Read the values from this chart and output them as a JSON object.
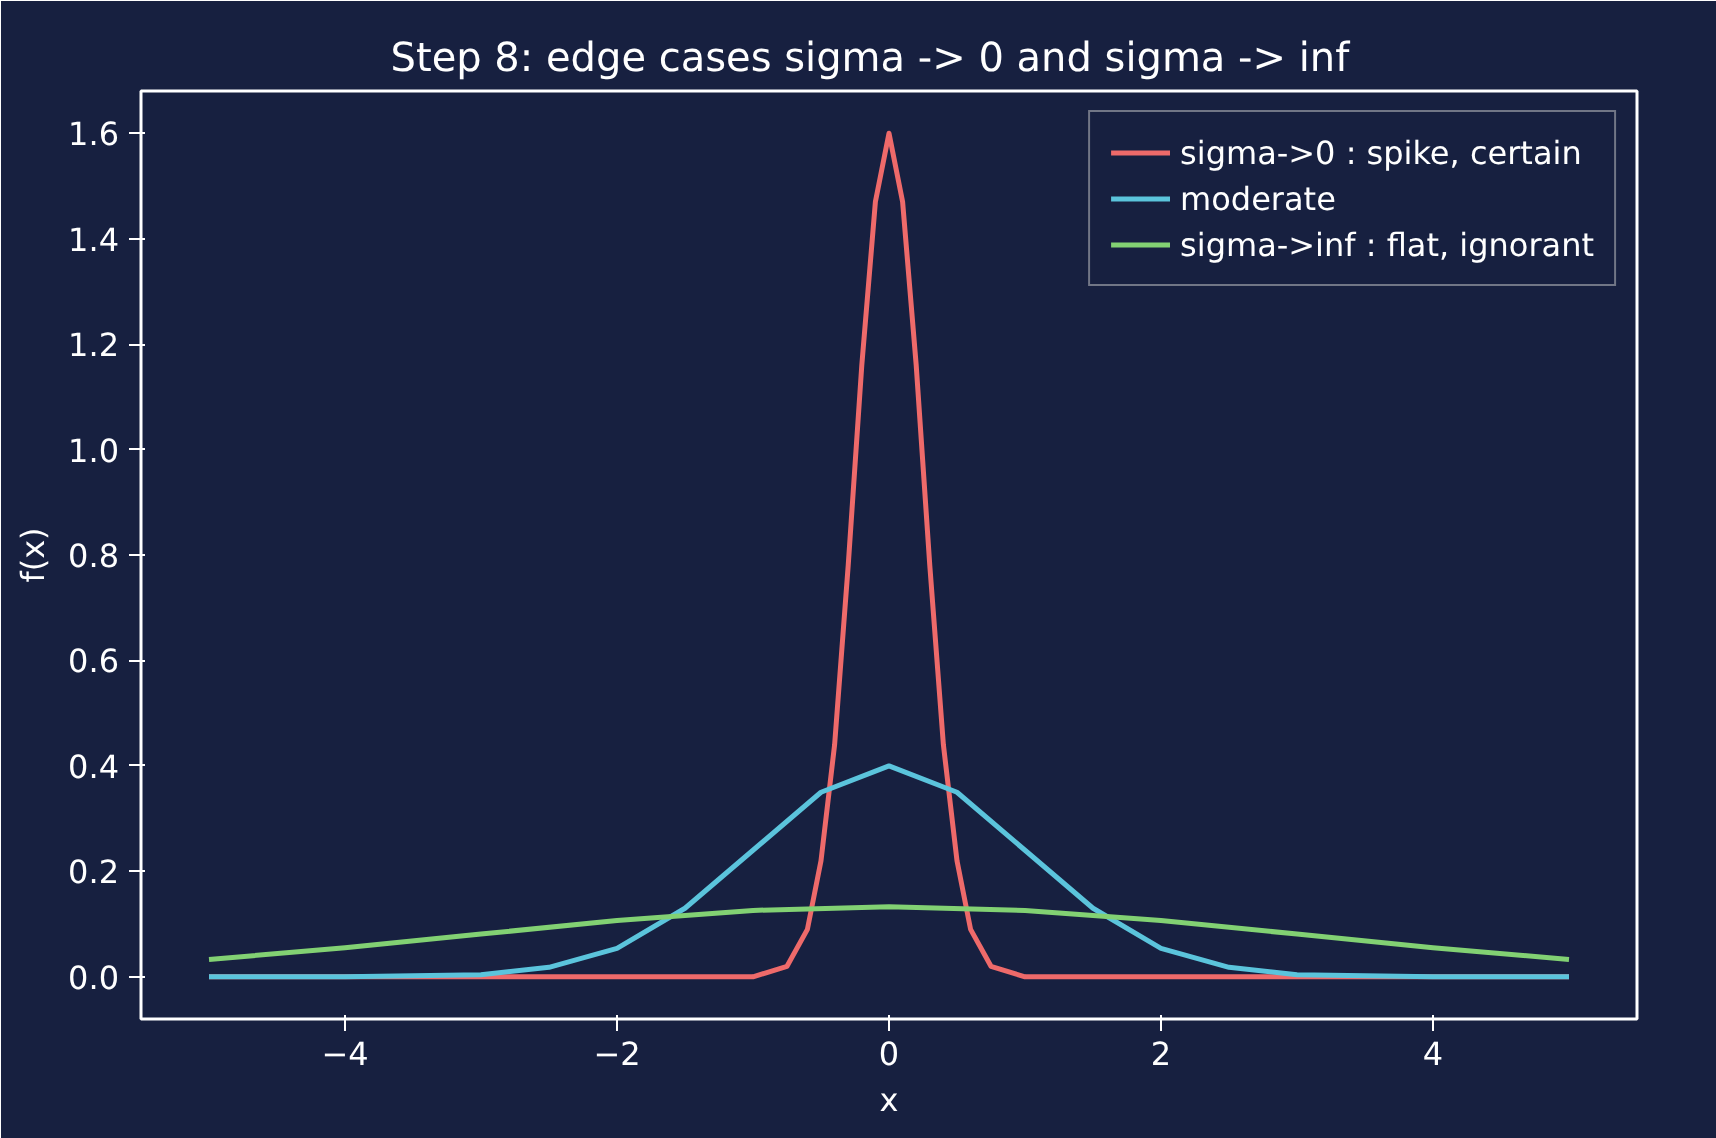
{
  "chart_data": {
    "type": "line",
    "title": "Step 8: edge cases  sigma -> 0  and  sigma -> inf",
    "xlabel": "x",
    "ylabel": "f(x)",
    "xlim": [
      -5.5,
      5.5
    ],
    "ylim": [
      -0.08,
      1.68
    ],
    "xticks": [
      {
        "value": -4,
        "label": "−4"
      },
      {
        "value": -2,
        "label": "−2"
      },
      0,
      2,
      4
    ],
    "yticks": [
      {
        "value": 0,
        "label": "0.0"
      },
      {
        "value": 0.2,
        "label": "0.2"
      },
      {
        "value": 0.4,
        "label": "0.4"
      },
      {
        "value": 0.6,
        "label": "0.6"
      },
      {
        "value": 0.8,
        "label": "0.8"
      },
      {
        "value": 1,
        "label": "1.0"
      },
      {
        "value": 1.2,
        "label": "1.2"
      },
      {
        "value": 1.4,
        "label": "1.4"
      },
      {
        "value": 1.6,
        "label": "1.6"
      }
    ],
    "grid": false,
    "legend": "top right",
    "marker": "none",
    "line_style": "solid",
    "series": [
      {
        "name": "sigma->0 : spike, certain",
        "color": "#ee6a6a",
        "x": [
          -5,
          -1,
          -0.75,
          -0.6,
          -0.5,
          -0.4,
          -0.3,
          -0.2,
          -0.1,
          0,
          0.1,
          0.2,
          0.3,
          0.4,
          0.5,
          0.6,
          0.75,
          1,
          5
        ],
        "values": [
          0,
          0,
          0.02,
          0.09,
          0.22,
          0.44,
          0.78,
          1.16,
          1.47,
          1.6,
          1.47,
          1.16,
          0.78,
          0.44,
          0.22,
          0.09,
          0.02,
          0,
          0
        ]
      },
      {
        "name": "moderate",
        "color": "#5bc4dc",
        "x": [
          -5,
          -4,
          -3,
          -2.5,
          -2,
          -1.5,
          -1,
          -0.5,
          0,
          0.5,
          1,
          1.5,
          2,
          2.5,
          3,
          4,
          5
        ],
        "values": [
          0,
          0,
          0.004,
          0.018,
          0.054,
          0.13,
          0.24,
          0.35,
          0.4,
          0.35,
          0.24,
          0.13,
          0.054,
          0.018,
          0.004,
          0,
          0
        ]
      },
      {
        "name": "sigma->inf : flat, ignorant",
        "color": "#82d173",
        "x": [
          -5,
          -4,
          -3,
          -2,
          -1,
          0,
          1,
          2,
          3,
          4,
          5
        ],
        "values": [
          0.033,
          0.055,
          0.081,
          0.107,
          0.126,
          0.133,
          0.126,
          0.107,
          0.081,
          0.055,
          0.033
        ]
      }
    ]
  }
}
